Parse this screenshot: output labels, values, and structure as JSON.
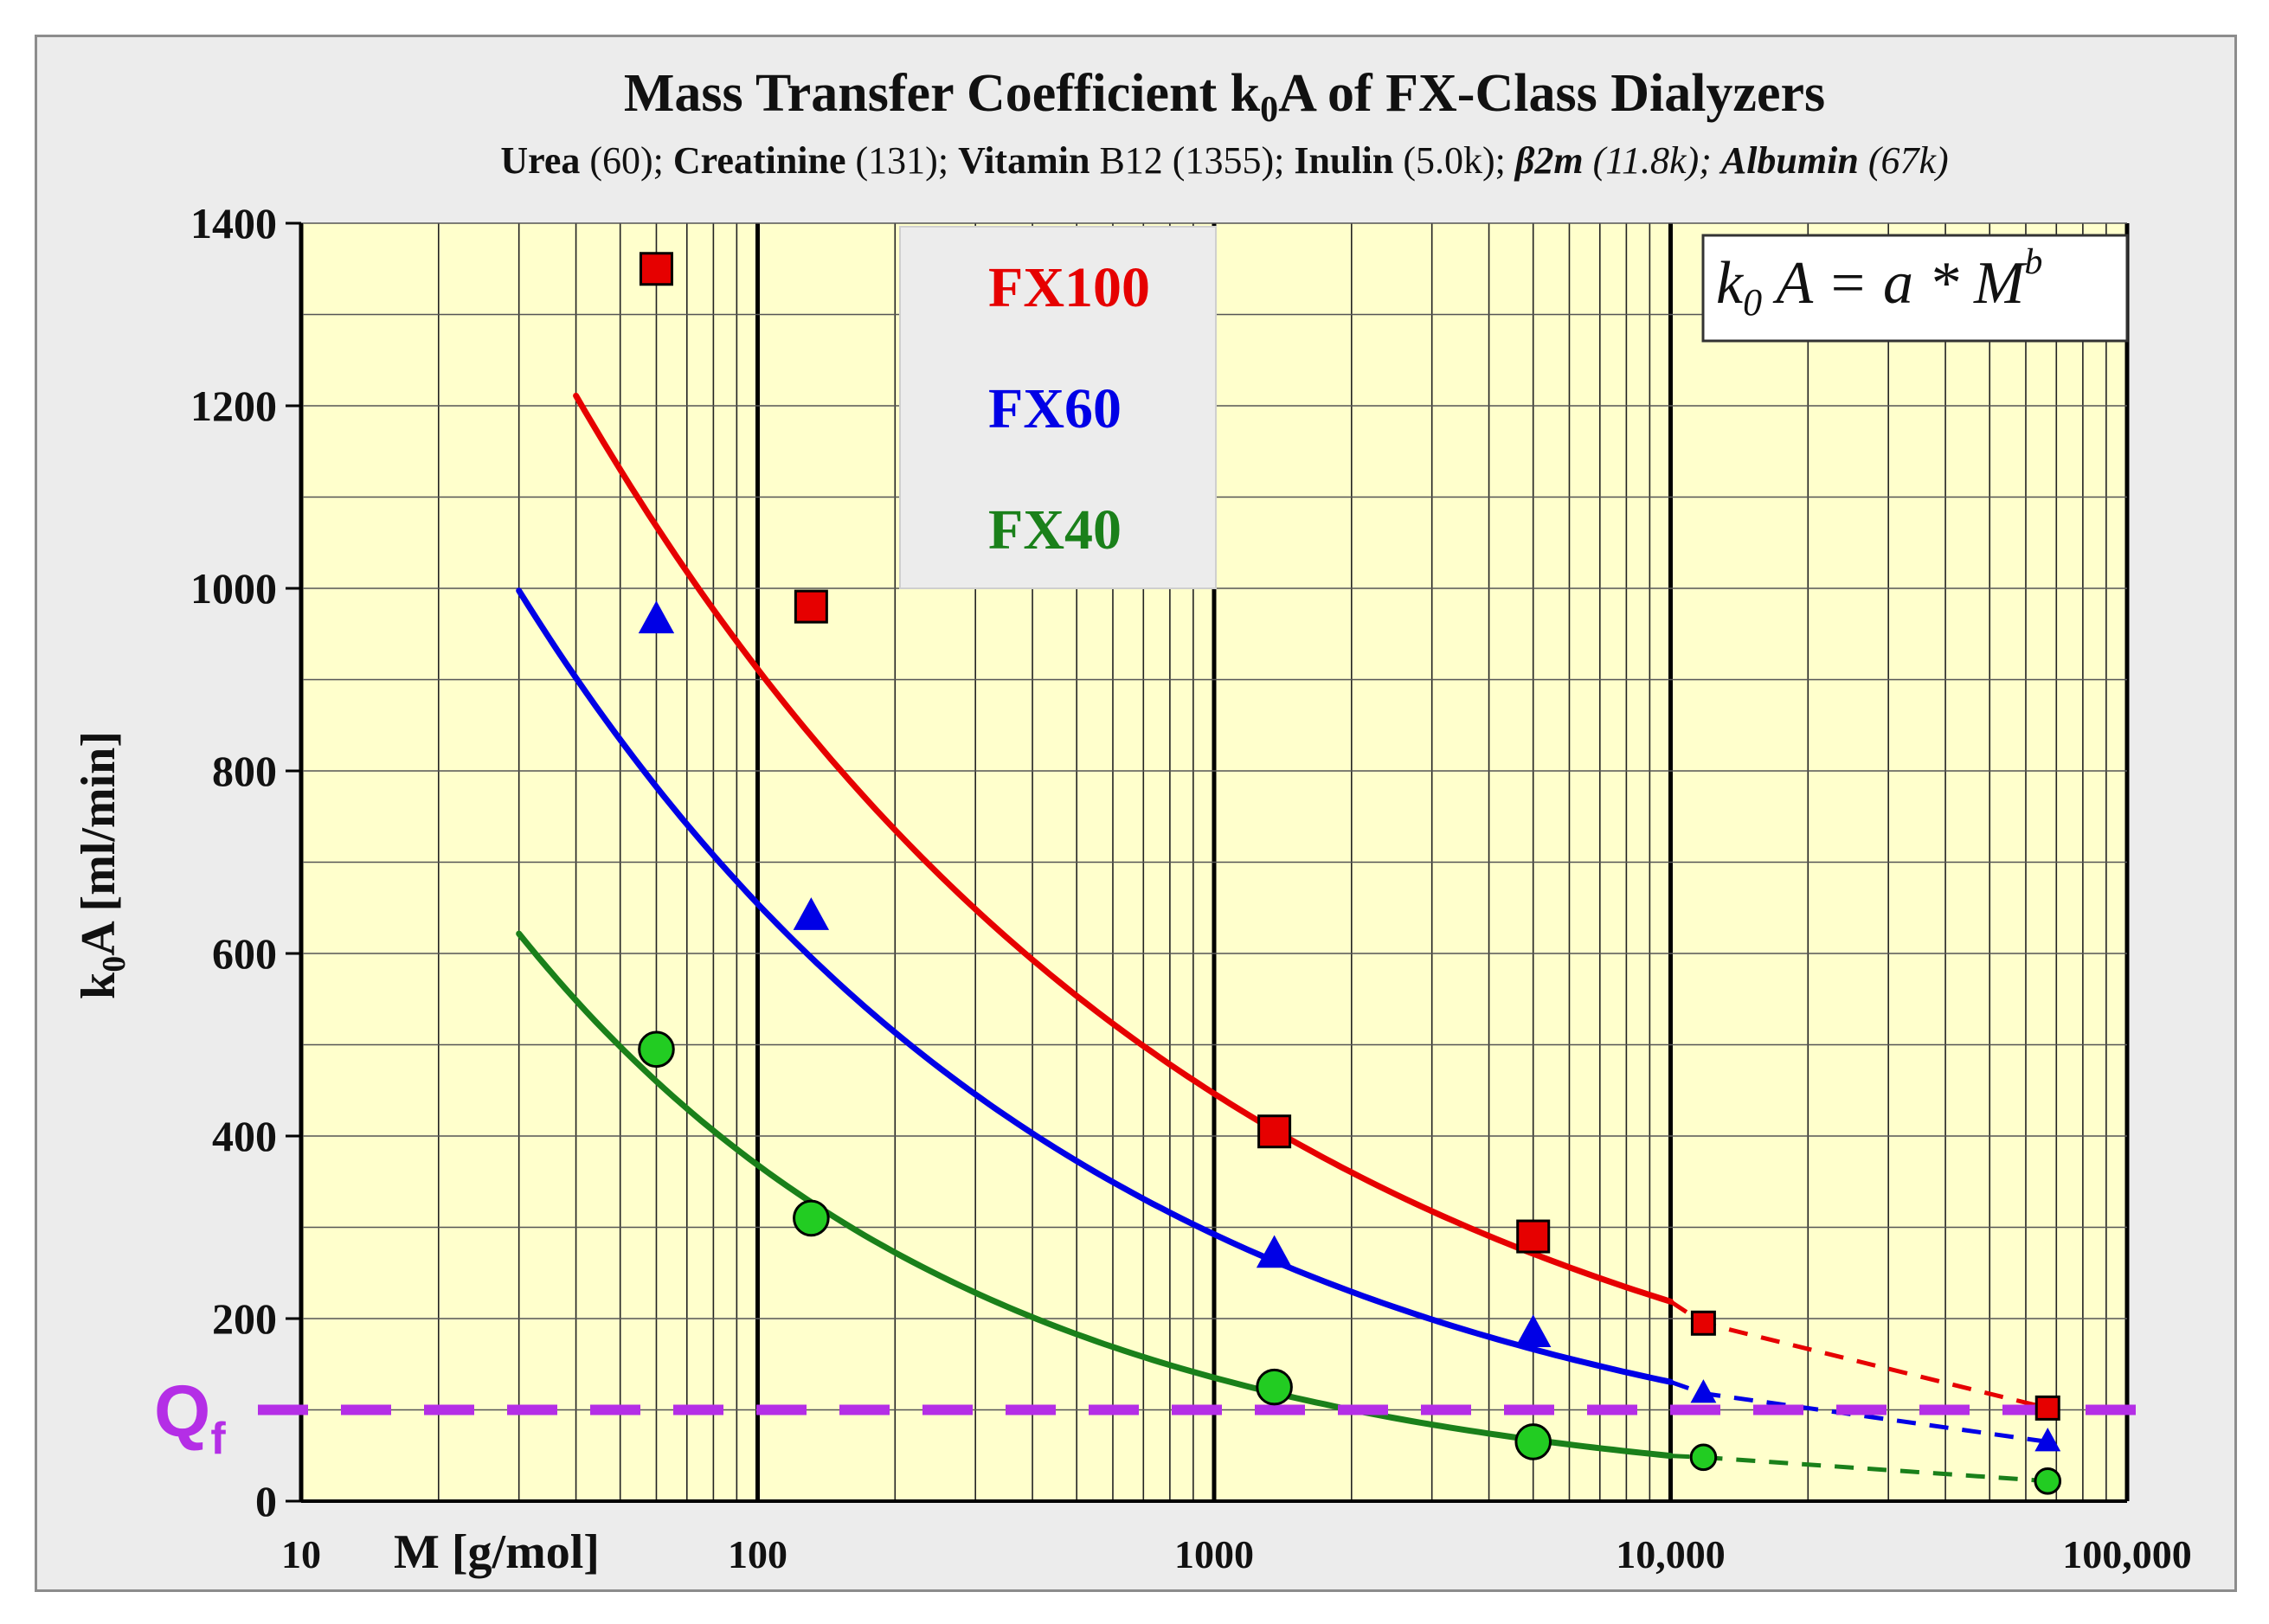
{
  "chart_data": {
    "type": "scatter",
    "title": "Mass Transfer Coefficient k0A of FX-Class Dialyzers",
    "title_parts": {
      "main_a": "Mass Transfer Coefficient k",
      "sub": "0",
      "main_b": "A of FX-Class Dialyzers"
    },
    "subtitle": {
      "urea_name": "Urea",
      "urea_mw": " (60); ",
      "creat_name": "Creatinine",
      "creat_mw": " (131); ",
      "vitb_name": "Vitamin",
      "vitb_mw": " B12 (1355);  ",
      "inulin_name": "Inulin",
      "inulin_mw": " (5.0k); ",
      "b2m_name": "β2m",
      "b2m_mw": " (11.8k); ",
      "alb_name": "Albumin",
      "alb_mw": " (67k)"
    },
    "xlabel": "M [g/mol]",
    "ylabel": {
      "k": "k",
      "sub": "0",
      "rest": "A   [ml/min]"
    },
    "x_scale": "log",
    "xlim": [
      10,
      100000
    ],
    "ylim": [
      0,
      1400
    ],
    "x_ticks": [
      10,
      100,
      1000,
      10000,
      100000
    ],
    "x_tick_labels": [
      "10",
      "100",
      "1000",
      "10,000",
      "100,000"
    ],
    "y_ticks": [
      0,
      200,
      400,
      600,
      800,
      1000,
      1200,
      1400
    ],
    "y_tick_labels": [
      "0",
      "200",
      "400",
      "600",
      "800",
      "1000",
      "1200",
      "1400"
    ],
    "grid": true,
    "legend_position": "top-center",
    "formula": {
      "k": "k",
      "sub": "0",
      "a": " A = a * M",
      "sup": "b"
    },
    "reference_line": {
      "label_main": "Q",
      "label_sub": "f",
      "y": 100,
      "color": "#b42ee6"
    },
    "series": [
      {
        "name": "FX100",
        "color": "#e60000",
        "marker": "square",
        "points": [
          {
            "x": 60,
            "y": 1350
          },
          {
            "x": 131,
            "y": 980
          },
          {
            "x": 1355,
            "y": 405
          },
          {
            "x": 5000,
            "y": 290
          }
        ],
        "extrapolated_points": [
          {
            "x": 11800,
            "y": 195
          },
          {
            "x": 67000,
            "y": 102
          }
        ],
        "fit": {
          "a": 3800,
          "b": -0.31,
          "x_from": 40,
          "x_to": 10000
        }
      },
      {
        "name": "FX60",
        "color": "#0000e6",
        "marker": "triangle",
        "points": [
          {
            "x": 60,
            "y": 965
          },
          {
            "x": 131,
            "y": 640
          },
          {
            "x": 1355,
            "y": 270
          },
          {
            "x": 5000,
            "y": 183
          }
        ],
        "extrapolated_points": [
          {
            "x": 11800,
            "y": 118
          },
          {
            "x": 67000,
            "y": 65
          }
        ],
        "fit": {
          "a": 3280,
          "b": -0.35,
          "x_from": 30,
          "x_to": 10000
        }
      },
      {
        "name": "FX40",
        "color": "#1a801a",
        "marker": "circle",
        "points": [
          {
            "x": 60,
            "y": 495
          },
          {
            "x": 131,
            "y": 310
          },
          {
            "x": 1355,
            "y": 125
          },
          {
            "x": 5000,
            "y": 65
          }
        ],
        "extrapolated_points": [
          {
            "x": 11800,
            "y": 48
          },
          {
            "x": 67000,
            "y": 22
          }
        ],
        "fit": {
          "a": 2730,
          "b": -0.435,
          "x_from": 30,
          "x_to": 10000
        }
      }
    ]
  }
}
